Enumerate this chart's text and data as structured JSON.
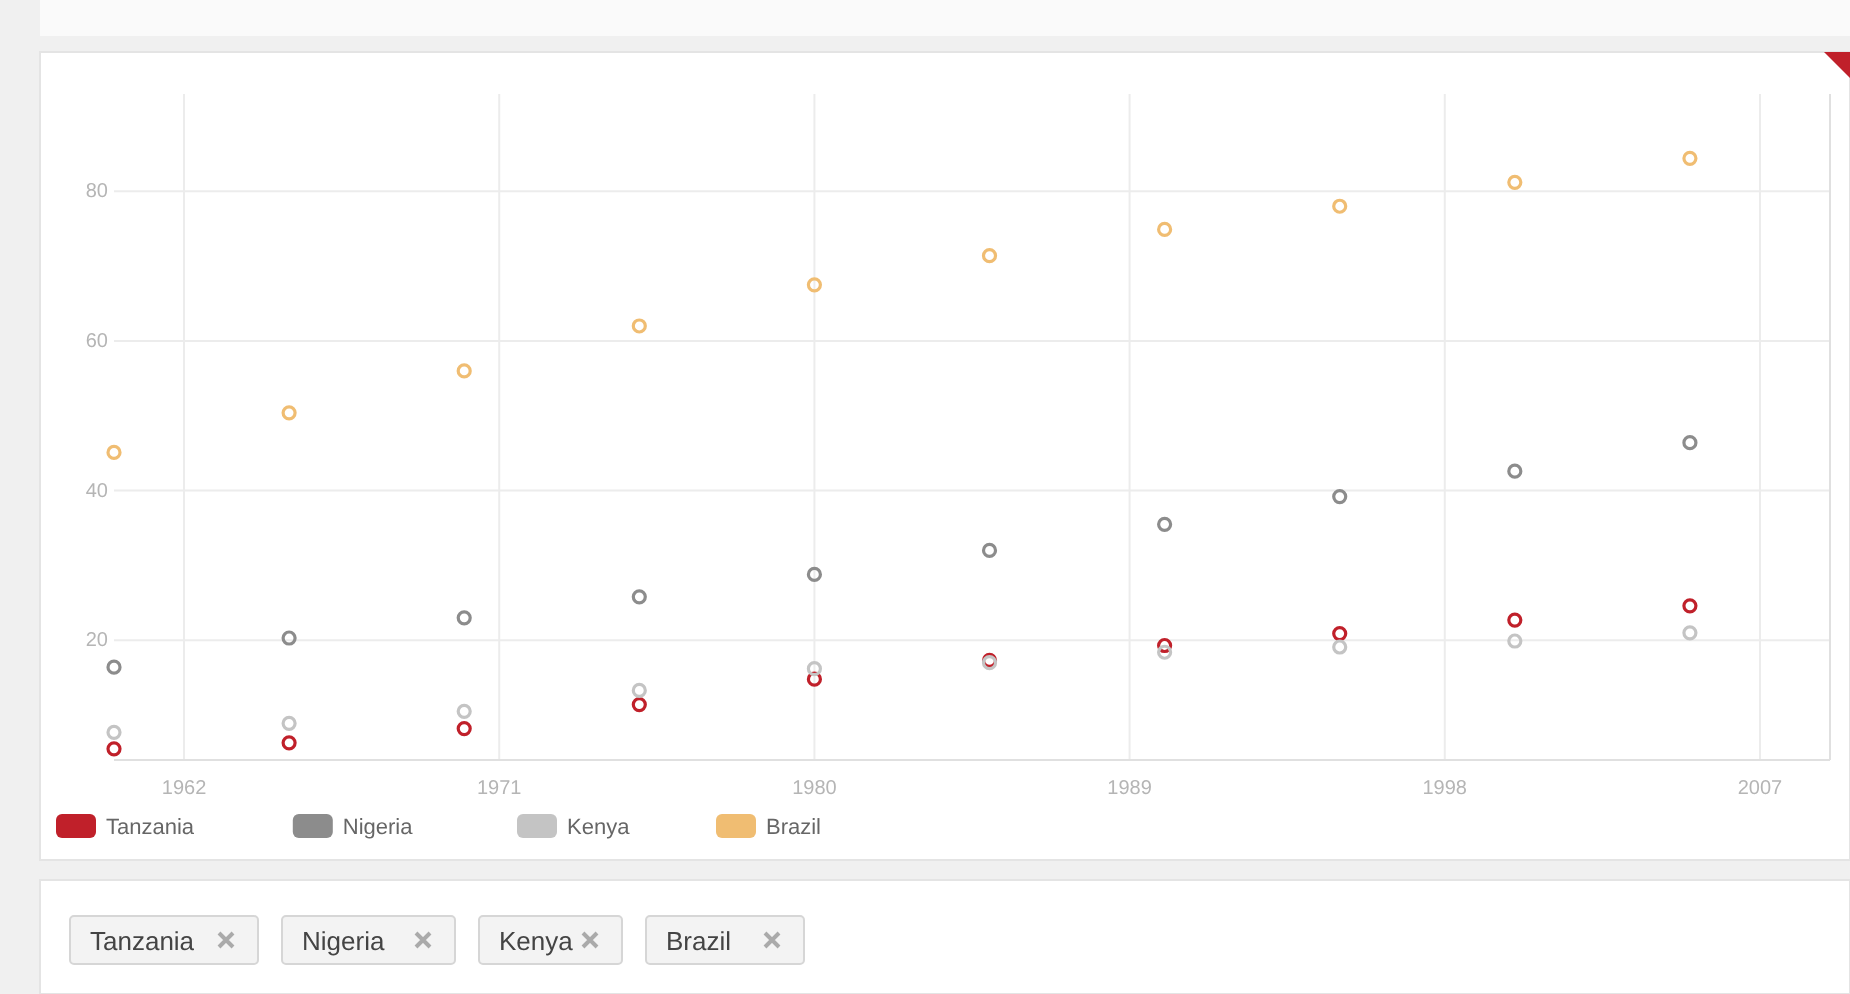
{
  "chart_data": {
    "type": "scatter",
    "x": [
      1960,
      1965,
      1970,
      1975,
      1980,
      1985,
      1990,
      1995,
      2000,
      2005
    ],
    "xlim": [
      1960,
      2009
    ],
    "xticks": [
      1962,
      1971,
      1980,
      1989,
      1998,
      2007
    ],
    "ylim": [
      4,
      93
    ],
    "yticks": [
      20,
      40,
      60,
      80
    ],
    "grid": true,
    "legend": "bottom left",
    "marker": "circle",
    "series": [
      {
        "name": "Tanzania",
        "color": "#c0202a",
        "values": [
          5.5,
          6.3,
          8.2,
          11.4,
          14.8,
          17.3,
          19.3,
          20.9,
          22.7,
          24.6
        ]
      },
      {
        "name": "Nigeria",
        "color": "#8c8c8c",
        "values": [
          16.4,
          20.3,
          23.0,
          25.8,
          28.8,
          32.0,
          35.5,
          39.2,
          42.6,
          46.4
        ]
      },
      {
        "name": "Kenya",
        "color": "#c4c4c4",
        "values": [
          7.7,
          8.9,
          10.5,
          13.3,
          16.2,
          17.0,
          18.4,
          19.1,
          19.9,
          21.0
        ]
      },
      {
        "name": "Brazil",
        "color": "#f0bd72",
        "values": [
          45.1,
          50.4,
          56.0,
          62.0,
          67.5,
          71.4,
          74.9,
          78.0,
          81.2,
          84.4
        ]
      }
    ],
    "annotations": [
      "Tanzania",
      "Nigeria",
      "Kenya",
      "Brazil"
    ]
  }
}
